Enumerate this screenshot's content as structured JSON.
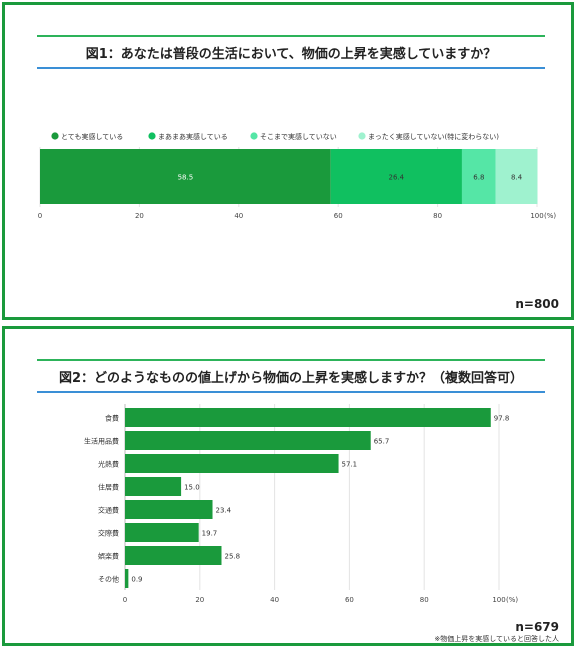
{
  "chart1": {
    "title": "図1：あなたは普段の生活において、物価の上昇を実感していますか？",
    "n_label": "n=800",
    "chart_data": {
      "type": "bar",
      "stacked": true,
      "orientation": "horizontal",
      "series": [
        {
          "name": "とても実感している",
          "values": [
            58.5
          ],
          "color": "#1a9a3c"
        },
        {
          "name": "まあまあ実感している",
          "values": [
            26.4
          ],
          "color": "#10c060"
        },
        {
          "name": "そこまで実感していない",
          "values": [
            6.8
          ],
          "color": "#55e6a6"
        },
        {
          "name": "まったく実感していない(特に変わらない)",
          "values": [
            8.4
          ],
          "color": "#9ff2cf"
        }
      ],
      "xlim": [
        0,
        100
      ],
      "xticks": [
        "0",
        "20",
        "40",
        "60",
        "80",
        "100"
      ],
      "unit": "(%)",
      "legend": "top"
    }
  },
  "chart2": {
    "title": "図2：どのようなものの値上げから物価の上昇を実感しますか？（複数回答可）",
    "n_label": "n=679",
    "note": "※物価上昇を実感していると回答した人",
    "chart_data": {
      "type": "bar",
      "orientation": "horizontal",
      "categories": [
        "食費",
        "生活用品費",
        "光熱費",
        "住居費",
        "交通費",
        "交際費",
        "娯楽費",
        "その他"
      ],
      "values": [
        97.8,
        65.7,
        57.1,
        15.0,
        23.4,
        19.7,
        25.8,
        0.9
      ],
      "value_labels": [
        "97.8",
        "65.7",
        "57.1",
        "15.0",
        "23.4",
        "19.7",
        "25.8",
        "0.9"
      ],
      "bar_color": "#1a9a3c",
      "xlim": [
        0,
        100
      ],
      "xticks": [
        "0",
        "20",
        "40",
        "60",
        "80",
        "100"
      ],
      "unit": "(%)"
    }
  }
}
